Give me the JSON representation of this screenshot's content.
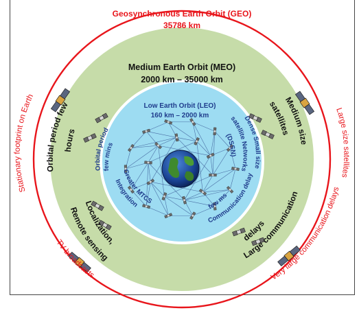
{
  "geo": {
    "title": "Geosynchronous Earth Orbit (GEO)",
    "altitude": "35786 km",
    "labels": {
      "stationary": "Stationary footprint on Earth",
      "large_sats": "Large size satellites",
      "tv": "TV broadcasts",
      "delays": "Very large communication delays"
    }
  },
  "meo": {
    "title": "Medium Earth Orbit (MEO)",
    "altitude": "2000 km – 35000 km",
    "labels": {
      "period_line1": "Orbital period few",
      "period_line2": "hours",
      "size_line1": "Medium size",
      "size_line2": "satellites",
      "loc_line1": "Localization,",
      "loc_line2": "Remote sensing",
      "delay_line1": "Large communication",
      "delay_line2": "delays"
    }
  },
  "leo": {
    "title": "Low Earth Orbit (LEO)",
    "altitude": "160 km – 2000 km",
    "labels": {
      "period_line1": "Orbital period",
      "period_line2": "few mins",
      "dssn_line1": "Dense Small size",
      "dssn_line2": "satellite Networks",
      "dssn_line3": "(DSSN)",
      "mtcs_line1": "Greater MTCS",
      "mtcs_line2": "Integration",
      "delay_line1": "Communication delay",
      "delay_line2": "few ms"
    }
  },
  "colors": {
    "geo_ring": "#e8151b",
    "meo_fill": "#c6dca9",
    "leo_fill": "#9ddcf2",
    "leo_text": "#1f3c8c",
    "meo_text": "#111111",
    "geo_text": "#e8151b"
  }
}
